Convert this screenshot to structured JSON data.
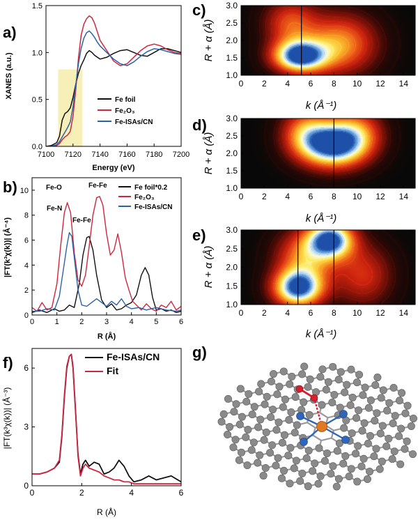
{
  "colors": {
    "fe_foil": "#111111",
    "fe2o3": "#d0253f",
    "fe_isas": "#2a63a8",
    "highlight": "#f7efb8",
    "graphene_atom": "#8a8a8a",
    "n_atom": "#2f66b8",
    "fe_atom": "#e07a22",
    "o_atom": "#d6202e"
  },
  "panels": {
    "a": {
      "label": "a)",
      "xlabel": "Energy (eV)",
      "ylabel": "XANES (a.u.)"
    },
    "b": {
      "label": "b)",
      "xlabel": "R (Å)",
      "ylabel": "|FT(k³χ(k))| (Å⁻⁴)",
      "annotations": {
        "fe_o": "Fe-O",
        "fe_fe_1": "Fe-Fe",
        "fe_n": "Fe-N",
        "fe_fe_2": "Fe-Fe"
      }
    },
    "c": {
      "label": "c)",
      "xlabel": "k (Å⁻¹)",
      "ylabel": "R + α (Å)"
    },
    "d": {
      "label": "d)",
      "xlabel": "k (Å⁻¹)",
      "ylabel": "R + α (Å)"
    },
    "e": {
      "label": "e)",
      "xlabel": "k (Å⁻¹)",
      "ylabel": "R + α (Å)"
    },
    "f": {
      "label": "f)",
      "xlabel": "R (Å)",
      "ylabel": "|FT(k³χ(k))| (Å⁻³)"
    },
    "g": {
      "label": "g)",
      "icon": "fe-n4-graphene-structure-icon"
    }
  },
  "chart_data": [
    {
      "id": "a",
      "type": "line",
      "xlim": [
        7100,
        7200
      ],
      "ylim": [
        0,
        1.5
      ],
      "xticks": [
        7100,
        7120,
        7140,
        7160,
        7180,
        7200
      ],
      "yticks": [
        0.0,
        0.5,
        1.0,
        1.5
      ],
      "highlight_region": {
        "x": [
          7109,
          7127
        ],
        "y": [
          0,
          0.82
        ]
      },
      "legend": [
        "Fe foil",
        "Fe₂O₃",
        "Fe-ISAs/CN"
      ],
      "series": [
        {
          "name": "Fe foil",
          "color_key": "fe_foil",
          "x": [
            7100,
            7104,
            7108,
            7110,
            7112,
            7114,
            7116,
            7118,
            7120,
            7122,
            7124,
            7126,
            7128,
            7130,
            7132,
            7134,
            7136,
            7140,
            7145,
            7150,
            7155,
            7160,
            7165,
            7170,
            7175,
            7180,
            7185,
            7190,
            7195,
            7200
          ],
          "y": [
            0.0,
            0.01,
            0.04,
            0.11,
            0.28,
            0.35,
            0.37,
            0.41,
            0.52,
            0.66,
            0.78,
            0.86,
            0.92,
            0.99,
            1.02,
            1.0,
            0.97,
            0.93,
            0.95,
            0.99,
            1.02,
            1.03,
            1.0,
            0.97,
            0.96,
            1.0,
            1.04,
            1.04,
            1.02,
            1.0
          ]
        },
        {
          "name": "Fe₂O₃",
          "color_key": "fe2o3",
          "x": [
            7100,
            7104,
            7108,
            7110,
            7112,
            7114,
            7116,
            7118,
            7120,
            7122,
            7124,
            7126,
            7128,
            7130,
            7132,
            7134,
            7136,
            7138,
            7140,
            7145,
            7150,
            7155,
            7160,
            7165,
            7170,
            7175,
            7180,
            7185,
            7190,
            7195,
            7200
          ],
          "y": [
            0.0,
            0.0,
            0.01,
            0.03,
            0.07,
            0.1,
            0.12,
            0.16,
            0.32,
            0.6,
            0.94,
            1.18,
            1.3,
            1.36,
            1.39,
            1.37,
            1.31,
            1.22,
            1.13,
            1.02,
            0.91,
            0.86,
            0.88,
            0.95,
            1.02,
            1.07,
            1.09,
            1.07,
            1.03,
            1.0,
            0.99
          ]
        },
        {
          "name": "Fe-ISAs/CN",
          "color_key": "fe_isas",
          "x": [
            7100,
            7104,
            7108,
            7110,
            7112,
            7114,
            7116,
            7118,
            7120,
            7122,
            7124,
            7126,
            7128,
            7130,
            7132,
            7134,
            7136,
            7138,
            7140,
            7145,
            7150,
            7155,
            7160,
            7165,
            7170,
            7175,
            7180,
            7185,
            7190,
            7195,
            7200
          ],
          "y": [
            0.0,
            0.0,
            0.02,
            0.05,
            0.1,
            0.15,
            0.2,
            0.26,
            0.42,
            0.65,
            0.88,
            1.04,
            1.15,
            1.21,
            1.23,
            1.2,
            1.16,
            1.11,
            1.07,
            1.0,
            0.93,
            0.88,
            0.86,
            0.9,
            0.96,
            1.01,
            1.04,
            1.03,
            1.01,
            0.99,
            0.98
          ]
        }
      ]
    },
    {
      "id": "b",
      "type": "line",
      "xlim": [
        0,
        6
      ],
      "ylim": [
        0,
        11
      ],
      "xticks": [
        0,
        1,
        2,
        3,
        4,
        5,
        6
      ],
      "yticks": [
        0,
        2,
        4,
        6,
        8,
        10
      ],
      "legend": [
        "Fe foil*0.2",
        "Fe₂O₃",
        "Fe-ISAs/CN"
      ],
      "series": [
        {
          "name": "Fe foil*0.2",
          "color_key": "fe_foil",
          "x": [
            0,
            0.3,
            0.6,
            0.9,
            1.1,
            1.3,
            1.5,
            1.7,
            1.9,
            2.05,
            2.2,
            2.3,
            2.45,
            2.6,
            2.8,
            3.0,
            3.2,
            3.4,
            3.6,
            3.8,
            4.0,
            4.2,
            4.4,
            4.55,
            4.7,
            4.85,
            5.0,
            5.2,
            5.4,
            5.6,
            5.8,
            6.0
          ],
          "y": [
            0.2,
            0.4,
            0.2,
            0.5,
            0.3,
            0.4,
            0.8,
            0.6,
            2.5,
            4.8,
            6.2,
            6.3,
            5.2,
            3.2,
            1.2,
            0.6,
            0.9,
            0.4,
            0.5,
            0.8,
            1.0,
            1.6,
            3.2,
            3.8,
            3.2,
            1.4,
            0.4,
            0.5,
            0.3,
            0.4,
            0.2,
            0.3
          ]
        },
        {
          "name": "Fe₂O₃",
          "color_key": "fe2o3",
          "x": [
            0,
            0.2,
            0.4,
            0.6,
            0.8,
            1.0,
            1.15,
            1.3,
            1.42,
            1.55,
            1.7,
            1.85,
            2.0,
            2.15,
            2.3,
            2.45,
            2.6,
            2.72,
            2.85,
            3.0,
            3.15,
            3.3,
            3.45,
            3.6,
            3.75,
            3.9,
            4.05,
            4.2,
            4.4,
            4.6,
            4.8,
            5.0,
            5.2,
            5.4,
            5.6,
            5.8,
            6.0
          ],
          "y": [
            0.6,
            0.3,
            1.0,
            0.4,
            0.6,
            2.5,
            5.5,
            8.2,
            9.0,
            8.2,
            5.0,
            2.8,
            2.3,
            3.2,
            5.5,
            8.0,
            9.4,
            9.5,
            8.8,
            6.5,
            4.8,
            5.2,
            6.5,
            5.0,
            3.0,
            2.0,
            1.1,
            0.8,
            0.4,
            0.9,
            0.5,
            0.3,
            0.8,
            0.6,
            1.1,
            0.4,
            0.7
          ]
        },
        {
          "name": "Fe-ISAs/CN",
          "color_key": "fe_isas",
          "x": [
            0,
            0.3,
            0.6,
            0.9,
            1.1,
            1.25,
            1.4,
            1.5,
            1.6,
            1.7,
            1.85,
            2.0,
            2.2,
            2.4,
            2.6,
            2.8,
            3.0,
            3.2,
            3.4,
            3.6,
            3.8,
            4.0,
            4.3,
            4.6,
            5.0,
            5.4,
            5.8,
            6.0
          ],
          "y": [
            0.3,
            0.3,
            0.5,
            0.4,
            1.5,
            3.5,
            5.5,
            6.6,
            6.3,
            4.6,
            2.0,
            0.8,
            0.7,
            1.0,
            1.3,
            1.0,
            0.7,
            1.1,
            0.8,
            1.3,
            0.7,
            0.5,
            0.6,
            0.4,
            0.6,
            0.4,
            0.3,
            0.4
          ]
        }
      ]
    },
    {
      "id": "c",
      "type": "heatmap",
      "xlim": [
        0,
        15
      ],
      "ylim": [
        1.0,
        3.0
      ],
      "xticks": [
        0,
        2,
        4,
        6,
        8,
        10,
        12,
        14
      ],
      "yticks": [
        1.0,
        1.5,
        2.0,
        2.5,
        3.0
      ],
      "marker_line_k": 5.2,
      "peaks": [
        {
          "k": 5.0,
          "r": 1.55,
          "intensity": 1.0,
          "sk": 1.6,
          "sr": 0.32
        },
        {
          "k": 8.5,
          "r": 1.9,
          "intensity": 0.55,
          "sk": 2.2,
          "sr": 0.6
        },
        {
          "k": 4.2,
          "r": 2.5,
          "intensity": 0.4,
          "sk": 1.6,
          "sr": 0.5
        }
      ]
    },
    {
      "id": "d",
      "type": "heatmap",
      "xlim": [
        0,
        15
      ],
      "ylim": [
        1.0,
        3.0
      ],
      "xticks": [
        0,
        2,
        4,
        6,
        8,
        10,
        12,
        14
      ],
      "yticks": [
        1.0,
        1.5,
        2.0,
        2.5,
        3.0
      ],
      "marker_line_k": 8.0,
      "peaks": [
        {
          "k": 7.9,
          "r": 2.25,
          "intensity": 1.0,
          "sk": 1.9,
          "sr": 0.45
        },
        {
          "k": 5.5,
          "r": 2.6,
          "intensity": 0.45,
          "sk": 1.5,
          "sr": 0.5
        },
        {
          "k": 10.0,
          "r": 2.6,
          "intensity": 0.4,
          "sk": 1.6,
          "sr": 0.5
        }
      ]
    },
    {
      "id": "e",
      "type": "heatmap",
      "xlim": [
        0,
        15
      ],
      "ylim": [
        1.0,
        3.0
      ],
      "xticks": [
        0,
        2,
        4,
        6,
        8,
        10,
        12,
        14
      ],
      "yticks": [
        1.0,
        1.5,
        2.0,
        2.5,
        3.0
      ],
      "marker_lines_k": [
        4.9,
        8.0
      ],
      "peaks": [
        {
          "k": 4.9,
          "r": 1.45,
          "intensity": 1.0,
          "sk": 1.5,
          "sr": 0.35
        },
        {
          "k": 7.7,
          "r": 2.75,
          "intensity": 0.95,
          "sk": 1.4,
          "sr": 0.35
        },
        {
          "k": 5.5,
          "r": 2.3,
          "intensity": 0.5,
          "sk": 1.8,
          "sr": 0.5
        },
        {
          "k": 10.5,
          "r": 1.8,
          "intensity": 0.35,
          "sk": 1.8,
          "sr": 0.6
        }
      ]
    },
    {
      "id": "f",
      "type": "line",
      "xlim": [
        0,
        6
      ],
      "ylim": [
        0,
        7
      ],
      "xticks": [
        0,
        2,
        4,
        6
      ],
      "yticks": [
        0,
        3,
        6
      ],
      "legend": [
        "Fe-ISAs/CN",
        "Fit"
      ],
      "series": [
        {
          "name": "Fe-ISAs/CN",
          "color_key": "fe_foil",
          "x": [
            0,
            0.3,
            0.6,
            0.9,
            1.1,
            1.2,
            1.3,
            1.4,
            1.5,
            1.58,
            1.65,
            1.75,
            1.85,
            1.95,
            2.05,
            2.15,
            2.3,
            2.5,
            2.7,
            2.9,
            3.1,
            3.3,
            3.5,
            3.7,
            3.9,
            4.1,
            4.4,
            4.7,
            5.0,
            5.3,
            5.6,
            6.0
          ],
          "y": [
            0.6,
            0.6,
            0.7,
            0.9,
            1.2,
            2.5,
            4.5,
            6.0,
            6.6,
            6.7,
            6.0,
            3.8,
            1.6,
            0.6,
            1.1,
            1.3,
            1.0,
            1.2,
            1.1,
            0.6,
            0.7,
            0.9,
            1.3,
            1.0,
            0.5,
            0.2,
            0.3,
            0.5,
            0.3,
            0.4,
            0.5,
            0.2
          ]
        },
        {
          "name": "Fit",
          "color_key": "fe2o3",
          "x": [
            0,
            0.3,
            0.6,
            0.9,
            1.1,
            1.2,
            1.3,
            1.4,
            1.5,
            1.58,
            1.65,
            1.75,
            1.85,
            1.95,
            2.05,
            2.15,
            2.3,
            2.5,
            2.7,
            2.9,
            3.1,
            3.3,
            3.5,
            3.7,
            3.9,
            4.1,
            4.4,
            4.7,
            5.0,
            5.3,
            5.6,
            6.0
          ],
          "y": [
            0.6,
            0.6,
            0.7,
            0.9,
            1.3,
            2.6,
            4.6,
            6.1,
            6.6,
            6.7,
            6.1,
            3.9,
            1.5,
            0.5,
            0.9,
            1.1,
            0.9,
            0.8,
            0.7,
            0.5,
            0.4,
            0.3,
            0.3,
            0.2,
            0.2,
            0.1,
            0.1,
            0.1,
            0.1,
            0.1,
            0.1,
            0.1
          ]
        }
      ]
    }
  ]
}
